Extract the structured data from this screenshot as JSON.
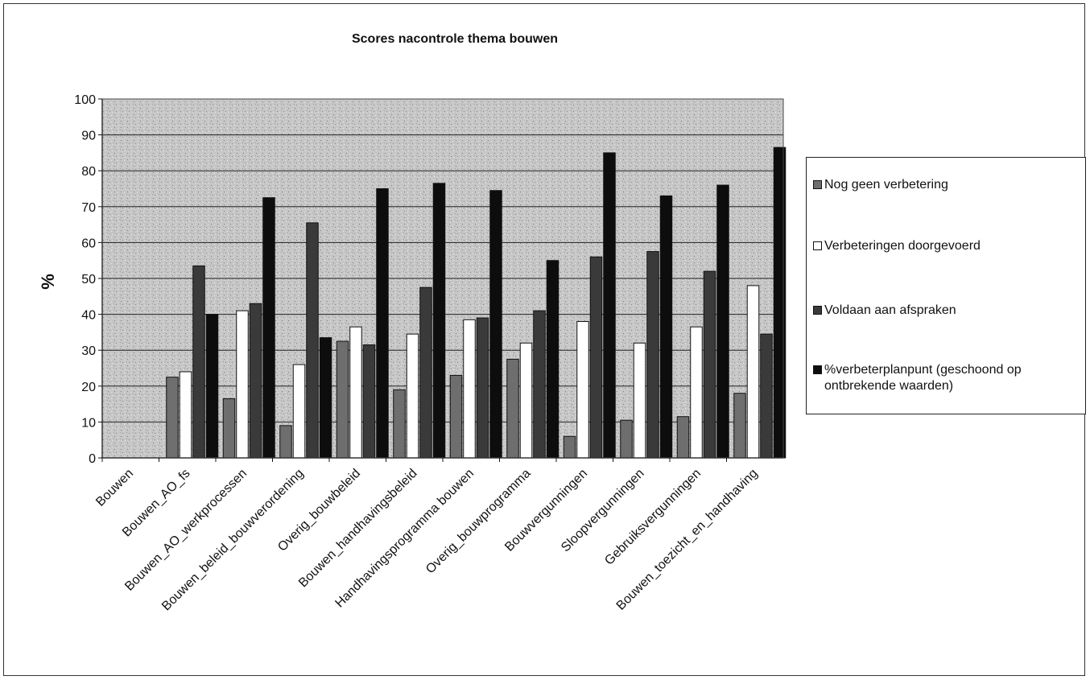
{
  "chart_data": {
    "type": "bar",
    "title": "Scores nacontrole  thema bouwen",
    "xlabel": "",
    "ylabel": "%",
    "ylim": [
      0,
      100
    ],
    "yticks": [
      0,
      10,
      20,
      30,
      40,
      50,
      60,
      70,
      80,
      90,
      100
    ],
    "grid": true,
    "legend_position": "right",
    "categories": [
      "Bouwen",
      "Bouwen_AO_fs",
      "Bouwen_AO_werkprocessen",
      "Bouwen_beleid_bouwverordening",
      "Overig_bouwbeleid",
      "Bouwen_handhavingsbeleid",
      "Handhavingsprogramma bouwen",
      "Overig_bouwprogramma",
      "Bouwvergunningen",
      "Sloopvergunningen",
      "Gebruiksvergunningen",
      "Bouwen_toezicht_en_handhaving"
    ],
    "series": [
      {
        "name": "Nog geen verbetering",
        "color": "#6e6e6e",
        "values": [
          0,
          22.5,
          16.5,
          9,
          32.5,
          19,
          23,
          27.5,
          6,
          10.5,
          11.5,
          18
        ]
      },
      {
        "name": "Verbeteringen doorgevoerd",
        "color": "#ffffff",
        "values": [
          0,
          24,
          41,
          26,
          36.5,
          34.5,
          38.5,
          32,
          38,
          32,
          36.5,
          48
        ]
      },
      {
        "name": "Voldaan aan afspraken",
        "color": "#3a3a3a",
        "values": [
          0,
          53.5,
          43,
          65.5,
          31.5,
          47.5,
          39,
          41,
          56,
          57.5,
          52,
          34.5
        ]
      },
      {
        "name": "%verbeterplanpunt (geschoond op ontbrekende waarden)",
        "color": "#0d0d0d",
        "values": [
          0,
          40,
          72.5,
          33.5,
          75,
          76.5,
          74.5,
          55,
          85,
          73,
          76,
          86.5
        ]
      }
    ]
  }
}
